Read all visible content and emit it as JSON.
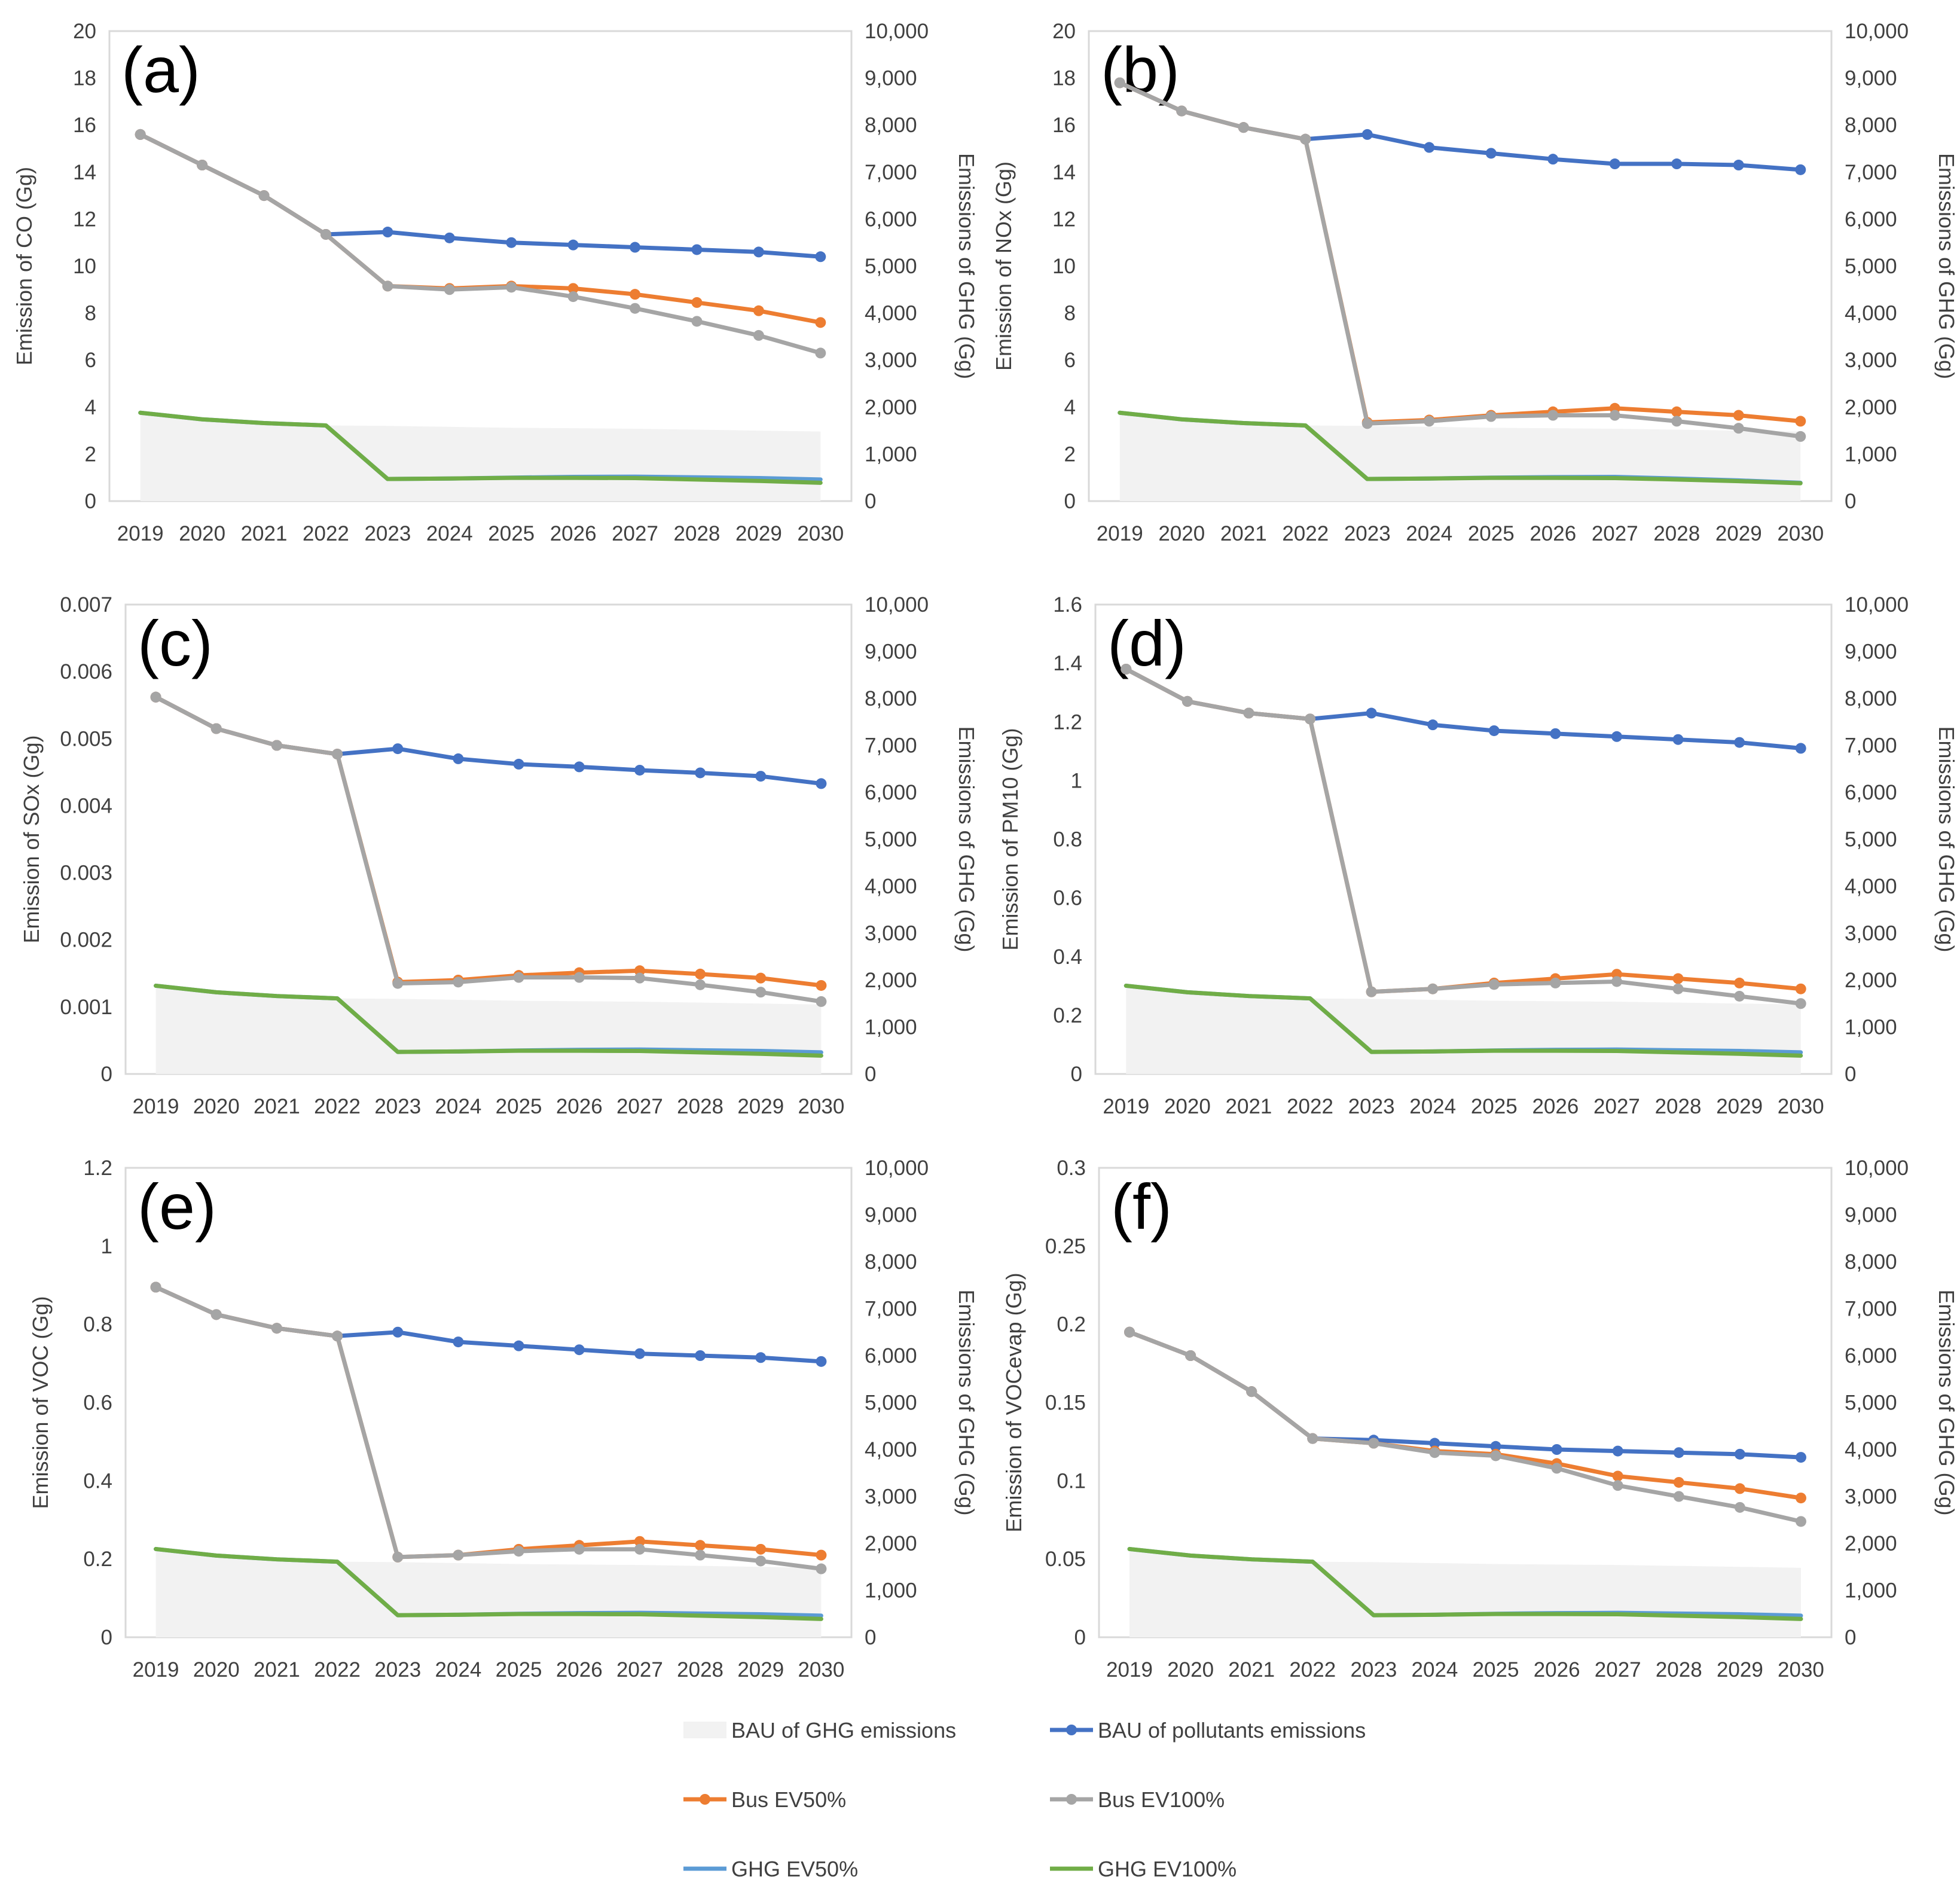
{
  "colors": {
    "bau_ghg_area": "#f2f2f2",
    "bau_pollutants": "#4472c4",
    "bus_ev50": "#ed7d31",
    "bus_ev100": "#a5a5a5",
    "ghg_ev50": "#5b9bd5",
    "ghg_ev100": "#70ad47",
    "axis": "#d9d9d9",
    "text": "#404040"
  },
  "legend": {
    "bau_ghg": "BAU of GHG emissions",
    "bau_pollutants": "BAU of pollutants emissions",
    "bus_ev50": "Bus EV50%",
    "bus_ev100": "Bus EV100%",
    "ghg_ev50": "GHG EV50%",
    "ghg_ev100": "GHG EV100%"
  },
  "chart_data": [
    {
      "type": "line",
      "panel_label": "(a)",
      "categories": [
        "2019",
        "2020",
        "2021",
        "2022",
        "2023",
        "2024",
        "2025",
        "2026",
        "2027",
        "2028",
        "2029",
        "2030"
      ],
      "ylabel": "Emission of CO (Gg)",
      "y2label": "Emissions of GHG (Gg)",
      "ylim": [
        0,
        20
      ],
      "yticks": [
        "0",
        "2",
        "4",
        "6",
        "8",
        "10",
        "12",
        "14",
        "16",
        "18",
        "20"
      ],
      "y2lim": [
        0,
        10000
      ],
      "y2ticks": [
        "0",
        "1,000",
        "2,000",
        "3,000",
        "4,000",
        "5,000",
        "6,000",
        "7,000",
        "8,000",
        "9,000",
        "10,000"
      ],
      "series": [
        {
          "name": "BAU of GHG emissions",
          "axis": "right",
          "kind": "area",
          "values": [
            1880,
            1740,
            1660,
            1610,
            1600,
            1580,
            1560,
            1550,
            1540,
            1520,
            1500,
            1480
          ]
        },
        {
          "name": "BAU of pollutants emissions",
          "axis": "left",
          "kind": "line",
          "values": [
            15.6,
            14.3,
            13.0,
            11.35,
            11.45,
            11.2,
            11.0,
            10.9,
            10.8,
            10.7,
            10.6,
            10.4
          ]
        },
        {
          "name": "Bus EV50%",
          "axis": "left",
          "kind": "line",
          "values": [
            15.6,
            14.3,
            13.0,
            11.35,
            9.15,
            9.05,
            9.15,
            9.05,
            8.8,
            8.45,
            8.1,
            7.6
          ]
        },
        {
          "name": "Bus EV100%",
          "axis": "left",
          "kind": "line",
          "values": [
            15.6,
            14.3,
            13.0,
            11.35,
            9.15,
            9.0,
            9.1,
            8.7,
            8.2,
            7.65,
            7.05,
            6.3
          ]
        },
        {
          "name": "GHG EV50%",
          "axis": "right",
          "kind": "line",
          "values": [
            1880,
            1740,
            1660,
            1610,
            470,
            480,
            500,
            515,
            520,
            505,
            490,
            460
          ]
        },
        {
          "name": "GHG EV100%",
          "axis": "right",
          "kind": "line",
          "values": [
            1880,
            1740,
            1660,
            1610,
            470,
            480,
            495,
            495,
            490,
            460,
            430,
            390
          ]
        }
      ]
    },
    {
      "type": "line",
      "panel_label": "(b)",
      "categories": [
        "2019",
        "2020",
        "2021",
        "2022",
        "2023",
        "2024",
        "2025",
        "2026",
        "2027",
        "2028",
        "2029",
        "2030"
      ],
      "ylabel": "Emission of NOx (Gg)",
      "y2label": "Emissions of GHG (Gg)",
      "ylim": [
        0,
        20
      ],
      "yticks": [
        "0",
        "2",
        "4",
        "6",
        "8",
        "10",
        "12",
        "14",
        "16",
        "18",
        "20"
      ],
      "y2lim": [
        0,
        10000
      ],
      "y2ticks": [
        "0",
        "1,000",
        "2,000",
        "3,000",
        "4,000",
        "5,000",
        "6,000",
        "7,000",
        "8,000",
        "9,000",
        "10,000"
      ],
      "series": [
        {
          "name": "BAU of GHG emissions",
          "axis": "right",
          "kind": "area",
          "values": [
            1880,
            1740,
            1660,
            1610,
            1600,
            1580,
            1560,
            1550,
            1540,
            1520,
            1500,
            1480
          ]
        },
        {
          "name": "BAU of pollutants emissions",
          "axis": "left",
          "kind": "line",
          "values": [
            17.8,
            16.6,
            15.9,
            15.4,
            15.6,
            15.05,
            14.8,
            14.55,
            14.35,
            14.35,
            14.3,
            14.1
          ]
        },
        {
          "name": "Bus EV50%",
          "axis": "left",
          "kind": "line",
          "values": [
            17.8,
            16.6,
            15.9,
            15.4,
            3.35,
            3.45,
            3.65,
            3.8,
            3.95,
            3.8,
            3.65,
            3.4
          ]
        },
        {
          "name": "Bus EV100%",
          "axis": "left",
          "kind": "line",
          "values": [
            17.8,
            16.6,
            15.9,
            15.4,
            3.3,
            3.4,
            3.6,
            3.65,
            3.65,
            3.4,
            3.1,
            2.75
          ]
        },
        {
          "name": "GHG EV50%",
          "axis": "right",
          "kind": "line",
          "values": [
            1880,
            1740,
            1660,
            1610,
            470,
            480,
            500,
            510,
            515,
            480,
            440,
            390
          ]
        },
        {
          "name": "GHG EV100%",
          "axis": "right",
          "kind": "line",
          "values": [
            1880,
            1740,
            1660,
            1610,
            470,
            480,
            495,
            495,
            490,
            460,
            425,
            380
          ]
        }
      ]
    },
    {
      "type": "line",
      "panel_label": "(c)",
      "categories": [
        "2019",
        "2020",
        "2021",
        "2022",
        "2023",
        "2024",
        "2025",
        "2026",
        "2027",
        "2028",
        "2029",
        "2030"
      ],
      "ylabel": "Emission of SOx (Gg)",
      "y2label": "Emissions of GHG (Gg)",
      "ylim": [
        0,
        0.007
      ],
      "yticks": [
        "0",
        "0.001",
        "0.002",
        "0.003",
        "0.004",
        "0.005",
        "0.006",
        "0.007"
      ],
      "y2lim": [
        0,
        10000
      ],
      "y2ticks": [
        "0",
        "1,000",
        "2,000",
        "3,000",
        "4,000",
        "5,000",
        "6,000",
        "7,000",
        "8,000",
        "9,000",
        "10,000"
      ],
      "series": [
        {
          "name": "BAU of GHG emissions",
          "axis": "right",
          "kind": "area",
          "values": [
            1880,
            1740,
            1660,
            1610,
            1600,
            1580,
            1560,
            1550,
            1540,
            1520,
            1500,
            1480
          ]
        },
        {
          "name": "BAU of pollutants emissions",
          "axis": "left",
          "kind": "line",
          "values": [
            0.00562,
            0.00515,
            0.0049,
            0.00477,
            0.00485,
            0.0047,
            0.00462,
            0.00458,
            0.00453,
            0.00449,
            0.00444,
            0.00433
          ]
        },
        {
          "name": "Bus EV50%",
          "axis": "left",
          "kind": "line",
          "values": [
            0.00562,
            0.00515,
            0.0049,
            0.00477,
            0.00137,
            0.0014,
            0.00147,
            0.00151,
            0.00154,
            0.00149,
            0.00143,
            0.00132
          ]
        },
        {
          "name": "Bus EV100%",
          "axis": "left",
          "kind": "line",
          "values": [
            0.00562,
            0.00515,
            0.0049,
            0.00477,
            0.00135,
            0.00137,
            0.00144,
            0.00144,
            0.00143,
            0.00133,
            0.00122,
            0.00108
          ]
        },
        {
          "name": "GHG EV50%",
          "axis": "right",
          "kind": "line",
          "values": [
            1880,
            1740,
            1660,
            1610,
            470,
            480,
            500,
            515,
            520,
            505,
            490,
            460
          ]
        },
        {
          "name": "GHG EV100%",
          "axis": "right",
          "kind": "line",
          "values": [
            1880,
            1740,
            1660,
            1610,
            470,
            480,
            495,
            495,
            490,
            460,
            430,
            390
          ]
        }
      ]
    },
    {
      "type": "line",
      "panel_label": "(d)",
      "categories": [
        "2019",
        "2020",
        "2021",
        "2022",
        "2023",
        "2024",
        "2025",
        "2026",
        "2027",
        "2028",
        "2029",
        "2030"
      ],
      "ylabel": "Emission of PM10 (Gg)",
      "y2label": "Emissions of GHG (Gg)",
      "ylim": [
        0,
        1.6
      ],
      "yticks": [
        "0",
        "0.2",
        "0.4",
        "0.6",
        "0.8",
        "1",
        "1.2",
        "1.4",
        "1.6"
      ],
      "y2lim": [
        0,
        10000
      ],
      "y2ticks": [
        "0",
        "1,000",
        "2,000",
        "3,000",
        "4,000",
        "5,000",
        "6,000",
        "7,000",
        "8,000",
        "9,000",
        "10,000"
      ],
      "series": [
        {
          "name": "BAU of GHG emissions",
          "axis": "right",
          "kind": "area",
          "values": [
            1880,
            1740,
            1660,
            1610,
            1600,
            1580,
            1560,
            1550,
            1540,
            1520,
            1500,
            1480
          ]
        },
        {
          "name": "BAU of pollutants emissions",
          "axis": "left",
          "kind": "line",
          "values": [
            1.38,
            1.27,
            1.23,
            1.21,
            1.23,
            1.19,
            1.17,
            1.16,
            1.15,
            1.14,
            1.13,
            1.11
          ]
        },
        {
          "name": "Bus EV50%",
          "axis": "left",
          "kind": "line",
          "values": [
            1.38,
            1.27,
            1.23,
            1.21,
            0.28,
            0.29,
            0.31,
            0.325,
            0.34,
            0.325,
            0.31,
            0.29
          ]
        },
        {
          "name": "Bus EV100%",
          "axis": "left",
          "kind": "line",
          "values": [
            1.38,
            1.27,
            1.23,
            1.21,
            0.28,
            0.29,
            0.305,
            0.31,
            0.315,
            0.29,
            0.265,
            0.24
          ]
        },
        {
          "name": "GHG EV50%",
          "axis": "right",
          "kind": "line",
          "values": [
            1880,
            1740,
            1660,
            1610,
            470,
            480,
            500,
            515,
            520,
            505,
            490,
            460
          ]
        },
        {
          "name": "GHG EV100%",
          "axis": "right",
          "kind": "line",
          "values": [
            1880,
            1740,
            1660,
            1610,
            470,
            480,
            495,
            495,
            490,
            460,
            430,
            390
          ]
        }
      ]
    },
    {
      "type": "line",
      "panel_label": "(e)",
      "categories": [
        "2019",
        "2020",
        "2021",
        "2022",
        "2023",
        "2024",
        "2025",
        "2026",
        "2027",
        "2028",
        "2029",
        "2030"
      ],
      "ylabel": "Emission of VOC  (Gg)",
      "y2label": "Emissions of GHG (Gg)",
      "ylim": [
        0,
        1.2
      ],
      "yticks": [
        "0",
        "0.2",
        "0.4",
        "0.6",
        "0.8",
        "1",
        "1.2"
      ],
      "y2lim": [
        0,
        10000
      ],
      "y2ticks": [
        "0",
        "1,000",
        "2,000",
        "3,000",
        "4,000",
        "5,000",
        "6,000",
        "7,000",
        "8,000",
        "9,000",
        "10,000"
      ],
      "series": [
        {
          "name": "BAU of GHG emissions",
          "axis": "right",
          "kind": "area",
          "values": [
            1880,
            1740,
            1660,
            1610,
            1600,
            1580,
            1560,
            1550,
            1540,
            1520,
            1500,
            1480
          ]
        },
        {
          "name": "BAU of pollutants emissions",
          "axis": "left",
          "kind": "line",
          "values": [
            0.895,
            0.825,
            0.79,
            0.77,
            0.78,
            0.755,
            0.745,
            0.735,
            0.725,
            0.72,
            0.715,
            0.705
          ]
        },
        {
          "name": "Bus EV50%",
          "axis": "left",
          "kind": "line",
          "values": [
            0.895,
            0.825,
            0.79,
            0.77,
            0.205,
            0.21,
            0.225,
            0.235,
            0.245,
            0.235,
            0.225,
            0.21
          ]
        },
        {
          "name": "Bus EV100%",
          "axis": "left",
          "kind": "line",
          "values": [
            0.895,
            0.825,
            0.79,
            0.77,
            0.205,
            0.21,
            0.22,
            0.225,
            0.225,
            0.21,
            0.195,
            0.175
          ]
        },
        {
          "name": "GHG EV50%",
          "axis": "right",
          "kind": "line",
          "values": [
            1880,
            1740,
            1660,
            1610,
            470,
            480,
            500,
            515,
            520,
            505,
            490,
            460
          ]
        },
        {
          "name": "GHG EV100%",
          "axis": "right",
          "kind": "line",
          "values": [
            1880,
            1740,
            1660,
            1610,
            470,
            480,
            495,
            495,
            490,
            460,
            430,
            390
          ]
        }
      ]
    },
    {
      "type": "line",
      "panel_label": "(f)",
      "categories": [
        "2019",
        "2020",
        "2021",
        "2022",
        "2023",
        "2024",
        "2025",
        "2026",
        "2027",
        "2028",
        "2029",
        "2030"
      ],
      "ylabel": "Emission of VOCevap  (Gg)",
      "y2label": "Emissions of GHG (Gg)",
      "ylim": [
        0,
        0.3
      ],
      "yticks": [
        "0",
        "0.05",
        "0.1",
        "0.15",
        "0.2",
        "0.25",
        "0.3"
      ],
      "y2lim": [
        0,
        10000
      ],
      "y2ticks": [
        "0",
        "1,000",
        "2,000",
        "3,000",
        "4,000",
        "5,000",
        "6,000",
        "7,000",
        "8,000",
        "9,000",
        "10,000"
      ],
      "series": [
        {
          "name": "BAU of GHG emissions",
          "axis": "right",
          "kind": "area",
          "values": [
            1880,
            1740,
            1660,
            1610,
            1600,
            1580,
            1560,
            1550,
            1540,
            1520,
            1500,
            1480
          ]
        },
        {
          "name": "BAU of pollutants emissions",
          "axis": "left",
          "kind": "line",
          "values": [
            0.195,
            0.18,
            0.157,
            0.127,
            0.126,
            0.124,
            0.122,
            0.12,
            0.119,
            0.118,
            0.117,
            0.115
          ]
        },
        {
          "name": "Bus EV50%",
          "axis": "left",
          "kind": "line",
          "values": [
            0.195,
            0.18,
            0.157,
            0.127,
            0.124,
            0.119,
            0.117,
            0.111,
            0.103,
            0.099,
            0.095,
            0.089
          ]
        },
        {
          "name": "Bus EV100%",
          "axis": "left",
          "kind": "line",
          "values": [
            0.195,
            0.18,
            0.157,
            0.127,
            0.124,
            0.118,
            0.116,
            0.108,
            0.097,
            0.09,
            0.083,
            0.074
          ]
        },
        {
          "name": "GHG EV50%",
          "axis": "right",
          "kind": "line",
          "values": [
            1880,
            1740,
            1660,
            1610,
            470,
            480,
            500,
            515,
            520,
            505,
            490,
            460
          ]
        },
        {
          "name": "GHG EV100%",
          "axis": "right",
          "kind": "line",
          "values": [
            1880,
            1740,
            1660,
            1610,
            470,
            480,
            495,
            495,
            490,
            460,
            430,
            390
          ]
        }
      ]
    }
  ]
}
